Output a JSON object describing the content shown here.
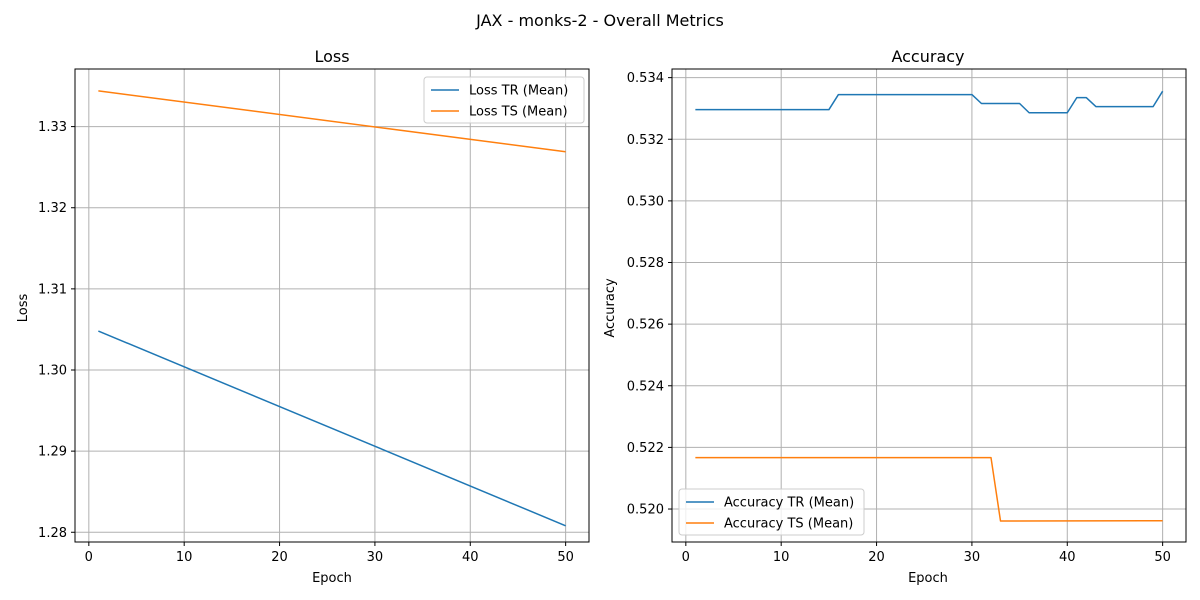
{
  "figure": {
    "suptitle": "JAX - monks-2 - Overall Metrics"
  },
  "chart_data": [
    {
      "type": "line",
      "title": "Loss",
      "xlabel": "Epoch",
      "ylabel": "Loss",
      "xlim": [
        -1.45,
        52.45
      ],
      "ylim": [
        1.2788,
        1.3371
      ],
      "xticks": [
        0,
        10,
        20,
        30,
        40,
        50
      ],
      "xtick_labels": [
        "0",
        "10",
        "20",
        "30",
        "40",
        "50"
      ],
      "yticks": [
        1.28,
        1.29,
        1.3,
        1.31,
        1.32,
        1.33
      ],
      "ytick_labels": [
        "1.28",
        "1.29",
        "1.30",
        "1.31",
        "1.32",
        "1.33"
      ],
      "grid": true,
      "legend_position": "upper right",
      "x": [
        1,
        50
      ],
      "series": [
        {
          "name": "Loss TR (Mean)",
          "color": "#1f77b4",
          "values": [
            1.3048,
            1.2808
          ]
        },
        {
          "name": "Loss TS (Mean)",
          "color": "#ff7f0e",
          "values": [
            1.3344,
            1.3269
          ]
        }
      ]
    },
    {
      "type": "line",
      "title": "Accuracy",
      "xlabel": "Epoch",
      "ylabel": "Accuracy",
      "xlim": [
        -1.45,
        52.45
      ],
      "ylim": [
        0.51893,
        0.53428
      ],
      "xticks": [
        0,
        10,
        20,
        30,
        40,
        50
      ],
      "xtick_labels": [
        "0",
        "10",
        "20",
        "30",
        "40",
        "50"
      ],
      "yticks": [
        0.52,
        0.522,
        0.524,
        0.526,
        0.528,
        0.53,
        0.532,
        0.534
      ],
      "ytick_labels": [
        "0.520",
        "0.522",
        "0.524",
        "0.526",
        "0.528",
        "0.530",
        "0.532",
        "0.534"
      ],
      "grid": true,
      "legend_position": "lower left",
      "x": [
        1,
        15,
        16,
        30,
        31,
        35,
        36,
        40,
        41,
        42,
        43,
        49,
        50
      ],
      "series": [
        {
          "name": "Accuracy TR (Mean)",
          "color": "#1f77b4",
          "values": [
            0.53296,
            0.53296,
            0.53345,
            0.53345,
            0.53316,
            0.53316,
            0.53286,
            0.53286,
            0.53335,
            0.53335,
            0.53306,
            0.53306,
            0.53356
          ]
        },
        {
          "name": "Accuracy TS (Mean)",
          "color": "#ff7f0e",
          "x": [
            1,
            32,
            33,
            50
          ],
          "values": [
            0.52167,
            0.52167,
            0.51961,
            0.51962
          ]
        }
      ]
    }
  ]
}
